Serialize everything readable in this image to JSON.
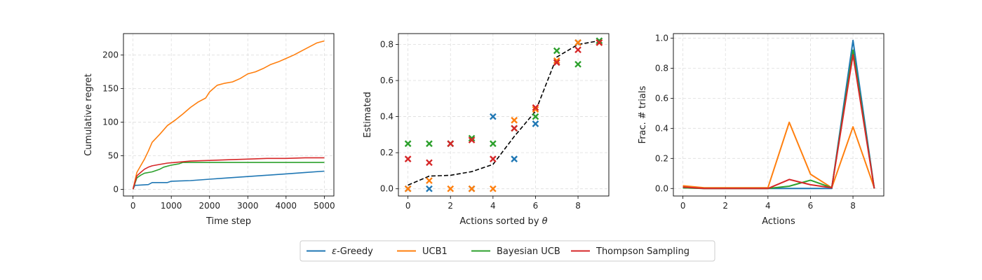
{
  "colors": {
    "egreedy": "#1f77b4",
    "ucb1": "#ff7f0e",
    "bayes": "#2ca02c",
    "thompson": "#d62728",
    "truth": "#000000",
    "grid": "#dddddd"
  },
  "legend": {
    "placement": "bottom-center",
    "entries": [
      {
        "key": "egreedy",
        "prefix": "ε",
        "label": "-Greedy"
      },
      {
        "key": "ucb1",
        "prefix": "",
        "label": "UCB1"
      },
      {
        "key": "bayes",
        "prefix": "",
        "label": "Bayesian UCB"
      },
      {
        "key": "thompson",
        "prefix": "",
        "label": "Thompson Sampling"
      }
    ]
  },
  "chart_data": [
    {
      "type": "line",
      "xlabel": "Time step",
      "ylabel": "Cumulative regret",
      "xlim": [
        -250,
        5250
      ],
      "ylim": [
        -10,
        232
      ],
      "xticks": [
        0,
        1000,
        2000,
        3000,
        4000,
        5000
      ],
      "yticks": [
        0,
        50,
        100,
        150,
        200
      ],
      "grid": true,
      "series": [
        {
          "key": "egreedy",
          "x": [
            0,
            50,
            100,
            400,
            500,
            900,
            1000,
            1500,
            2000,
            2500,
            3000,
            3500,
            4000,
            4500,
            5000
          ],
          "y": [
            0,
            6,
            6,
            7,
            10,
            10,
            12,
            13,
            15,
            17,
            19,
            21,
            23,
            25,
            27
          ]
        },
        {
          "key": "ucb1",
          "x": [
            0,
            100,
            200,
            300,
            400,
            500,
            700,
            900,
            1100,
            1300,
            1500,
            1700,
            1900,
            2000,
            2200,
            2400,
            2600,
            2800,
            3000,
            3200,
            3400,
            3600,
            3800,
            4000,
            4200,
            4400,
            4600,
            4800,
            5000
          ],
          "y": [
            0,
            25,
            35,
            45,
            57,
            70,
            82,
            95,
            103,
            112,
            122,
            130,
            136,
            145,
            155,
            158,
            160,
            165,
            172,
            175,
            180,
            186,
            190,
            195,
            200,
            206,
            212,
            218,
            221
          ]
        },
        {
          "key": "bayes",
          "x": [
            0,
            100,
            200,
            300,
            500,
            700,
            800,
            1000,
            1200,
            1300,
            1500,
            2000,
            3000,
            4000,
            5000
          ],
          "y": [
            0,
            17,
            21,
            24,
            26,
            30,
            33,
            36,
            38,
            40,
            40,
            40,
            40,
            40,
            40
          ]
        },
        {
          "key": "thompson",
          "x": [
            0,
            100,
            200,
            300,
            400,
            500,
            700,
            900,
            1100,
            1300,
            1500,
            2000,
            2500,
            3000,
            3500,
            4000,
            4500,
            5000
          ],
          "y": [
            0,
            20,
            25,
            30,
            33,
            35,
            37,
            39,
            40,
            41,
            42,
            43,
            44,
            45,
            46,
            46,
            47,
            47
          ]
        }
      ]
    },
    {
      "type": "scatter",
      "xlabel_prefix": "Actions sorted by ",
      "xlabel_symbol": "θ",
      "ylabel": "Estimated",
      "xlim": [
        -0.45,
        9.45
      ],
      "ylim": [
        -0.04,
        0.86
      ],
      "xticks": [
        0,
        2,
        4,
        6,
        8
      ],
      "yticks": [
        0.0,
        0.2,
        0.4,
        0.6,
        0.8
      ],
      "grid": true,
      "truth": {
        "x": [
          0,
          1,
          2,
          3,
          4,
          5,
          6,
          7,
          8,
          9
        ],
        "y": [
          0.02,
          0.07,
          0.075,
          0.095,
          0.135,
          0.29,
          0.43,
          0.73,
          0.8,
          0.82
        ]
      },
      "series": [
        {
          "key": "egreedy",
          "x": [
            0,
            1,
            2,
            3,
            4,
            5,
            6,
            7,
            8,
            9
          ],
          "y": [
            0.0,
            0.0,
            0.25,
            0.0,
            0.4,
            0.165,
            0.36,
            0.7,
            0.81,
            0.82
          ]
        },
        {
          "key": "ucb1",
          "x": [
            0,
            1,
            2,
            3,
            4,
            5,
            6,
            7,
            8,
            9
          ],
          "y": [
            0.0,
            0.045,
            0.0,
            0.0,
            0.0,
            0.38,
            0.44,
            0.71,
            0.81,
            0.81
          ]
        },
        {
          "key": "bayes",
          "x": [
            0,
            1,
            2,
            3,
            4,
            5,
            6,
            7,
            8,
            9
          ],
          "y": [
            0.25,
            0.25,
            0.25,
            0.28,
            0.25,
            0.335,
            0.4,
            0.765,
            0.69,
            0.82
          ]
        },
        {
          "key": "thompson",
          "x": [
            0,
            1,
            2,
            3,
            4,
            5,
            6,
            7,
            8,
            9
          ],
          "y": [
            0.165,
            0.145,
            0.25,
            0.27,
            0.165,
            0.335,
            0.45,
            0.7,
            0.77,
            0.81
          ]
        }
      ]
    },
    {
      "type": "line",
      "xlabel": "Actions",
      "ylabel": "Frac. # trials",
      "xlim": [
        -0.45,
        9.45
      ],
      "ylim": [
        -0.05,
        1.03
      ],
      "xticks": [
        0,
        2,
        4,
        6,
        8
      ],
      "yticks": [
        0.0,
        0.2,
        0.4,
        0.6,
        0.8,
        1.0
      ],
      "grid": true,
      "series": [
        {
          "key": "egreedy",
          "x": [
            0,
            1,
            2,
            3,
            4,
            5,
            6,
            7,
            8,
            9
          ],
          "y": [
            0.005,
            0.0,
            0.0,
            0.0,
            0.0,
            0.0,
            0.0,
            0.0,
            0.985,
            0.0
          ]
        },
        {
          "key": "ucb1",
          "x": [
            0,
            1,
            2,
            3,
            4,
            5,
            6,
            7,
            8,
            9
          ],
          "y": [
            0.018,
            0.005,
            0.005,
            0.005,
            0.005,
            0.44,
            0.095,
            0.005,
            0.41,
            0.005
          ]
        },
        {
          "key": "bayes",
          "x": [
            0,
            1,
            2,
            3,
            4,
            5,
            6,
            7,
            8,
            9
          ],
          "y": [
            0.005,
            0.0,
            0.0,
            0.0,
            0.0,
            0.015,
            0.055,
            0.005,
            0.92,
            0.0
          ]
        },
        {
          "key": "thompson",
          "x": [
            0,
            1,
            2,
            3,
            4,
            5,
            6,
            7,
            8,
            9
          ],
          "y": [
            0.01,
            0.0,
            0.0,
            0.0,
            0.0,
            0.06,
            0.025,
            0.005,
            0.89,
            0.0
          ]
        }
      ]
    }
  ]
}
